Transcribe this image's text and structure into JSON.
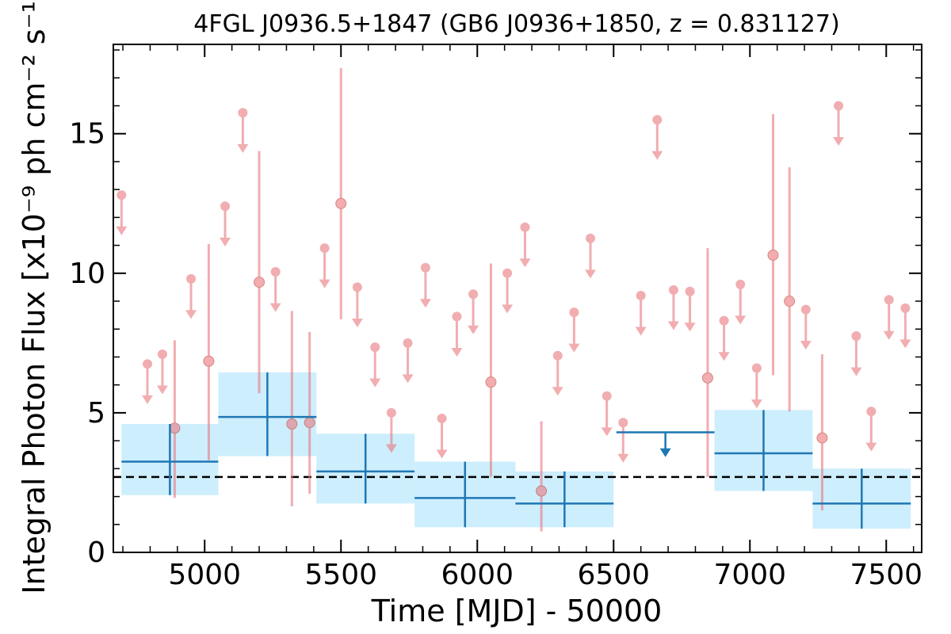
{
  "chart_data": {
    "type": "scatter",
    "title": "4FGL J0936.5+1847 (GB6 J0936+1850, z = 0.831127)",
    "xlabel": "Time [MJD] - 50000",
    "ylabel": "Integral Photon Flux [x10⁻⁹ ph cm⁻² s⁻¹]",
    "xlim": [
      4665,
      7630
    ],
    "ylim": [
      0,
      18.2
    ],
    "xticks": [
      5000,
      5500,
      6000,
      6500,
      7000,
      7500
    ],
    "yticks": [
      0,
      5,
      10,
      15
    ],
    "grid": false,
    "mean_flux": 2.7,
    "series": [
      {
        "kind": "short_bin_detections",
        "points": [
          {
            "x": 4890,
            "y": 4.45,
            "lo": 1.95,
            "hi": 7.6
          },
          {
            "x": 5015,
            "y": 6.85,
            "lo": 3.3,
            "hi": 11.05
          },
          {
            "x": 5200,
            "y": 9.68,
            "lo": 5.7,
            "hi": 14.38
          },
          {
            "x": 5320,
            "y": 4.6,
            "lo": 1.65,
            "hi": 8.65
          },
          {
            "x": 5385,
            "y": 4.65,
            "lo": 2.1,
            "hi": 7.9
          },
          {
            "x": 5500,
            "y": 12.5,
            "lo": 8.35,
            "hi": 17.35
          },
          {
            "x": 6050,
            "y": 6.1,
            "lo": 2.7,
            "hi": 10.35
          },
          {
            "x": 6235,
            "y": 2.2,
            "lo": 0.75,
            "hi": 4.7
          },
          {
            "x": 6845,
            "y": 6.25,
            "lo": 2.7,
            "hi": 10.9
          },
          {
            "x": 7085,
            "y": 10.65,
            "lo": 6.35,
            "hi": 15.7
          },
          {
            "x": 7145,
            "y": 9.0,
            "lo": 5.05,
            "hi": 13.8
          },
          {
            "x": 7265,
            "y": 4.1,
            "lo": 1.5,
            "hi": 7.1
          }
        ]
      },
      {
        "kind": "short_bin_upper_limits",
        "points": [
          {
            "x": 4695,
            "y": 12.8
          },
          {
            "x": 4790,
            "y": 6.75
          },
          {
            "x": 4845,
            "y": 7.1
          },
          {
            "x": 4950,
            "y": 9.8
          },
          {
            "x": 5075,
            "y": 12.4
          },
          {
            "x": 5140,
            "y": 15.75
          },
          {
            "x": 5260,
            "y": 10.05
          },
          {
            "x": 5440,
            "y": 10.9
          },
          {
            "x": 5560,
            "y": 9.5
          },
          {
            "x": 5625,
            "y": 7.35
          },
          {
            "x": 5685,
            "y": 5.0
          },
          {
            "x": 5745,
            "y": 7.5
          },
          {
            "x": 5810,
            "y": 10.2
          },
          {
            "x": 5870,
            "y": 4.8
          },
          {
            "x": 5925,
            "y": 8.45
          },
          {
            "x": 5985,
            "y": 9.25
          },
          {
            "x": 6110,
            "y": 10.0
          },
          {
            "x": 6175,
            "y": 11.65
          },
          {
            "x": 6295,
            "y": 7.05
          },
          {
            "x": 6355,
            "y": 8.6
          },
          {
            "x": 6415,
            "y": 11.25
          },
          {
            "x": 6475,
            "y": 5.6
          },
          {
            "x": 6535,
            "y": 4.65
          },
          {
            "x": 6600,
            "y": 9.2
          },
          {
            "x": 6660,
            "y": 15.5
          },
          {
            "x": 6720,
            "y": 9.4
          },
          {
            "x": 6780,
            "y": 9.35
          },
          {
            "x": 6905,
            "y": 8.3
          },
          {
            "x": 6965,
            "y": 9.6
          },
          {
            "x": 7025,
            "y": 6.6
          },
          {
            "x": 7205,
            "y": 8.7
          },
          {
            "x": 7325,
            "y": 16.0
          },
          {
            "x": 7390,
            "y": 7.75
          },
          {
            "x": 7445,
            "y": 5.05
          },
          {
            "x": 7510,
            "y": 9.05
          },
          {
            "x": 7570,
            "y": 8.75
          }
        ]
      },
      {
        "kind": "long_bin_detections",
        "points": [
          {
            "x0": 4695,
            "x1": 5050,
            "y": 3.25,
            "lo": 2.05,
            "hi": 4.6
          },
          {
            "x0": 5050,
            "x1": 5410,
            "y": 4.85,
            "lo": 3.45,
            "hi": 6.45
          },
          {
            "x0": 5410,
            "x1": 5770,
            "y": 2.9,
            "lo": 1.75,
            "hi": 4.25
          },
          {
            "x0": 5770,
            "x1": 6140,
            "y": 1.95,
            "lo": 0.9,
            "hi": 3.25
          },
          {
            "x0": 6140,
            "x1": 6500,
            "y": 1.75,
            "lo": 0.9,
            "hi": 2.9
          },
          {
            "x0": 6870,
            "x1": 7230,
            "y": 3.55,
            "lo": 2.2,
            "hi": 5.1
          },
          {
            "x0": 7230,
            "x1": 7590,
            "y": 1.75,
            "lo": 0.85,
            "hi": 3.0
          }
        ]
      },
      {
        "kind": "long_bin_upper_limits",
        "points": [
          {
            "x0": 6510,
            "x1": 6870,
            "y": 4.3
          }
        ]
      }
    ],
    "colors": {
      "short_bin": "#e8777d",
      "long_bin_line": "#1f77b4",
      "long_bin_fill": "#cdeefd",
      "mean_line": "#000000"
    }
  }
}
